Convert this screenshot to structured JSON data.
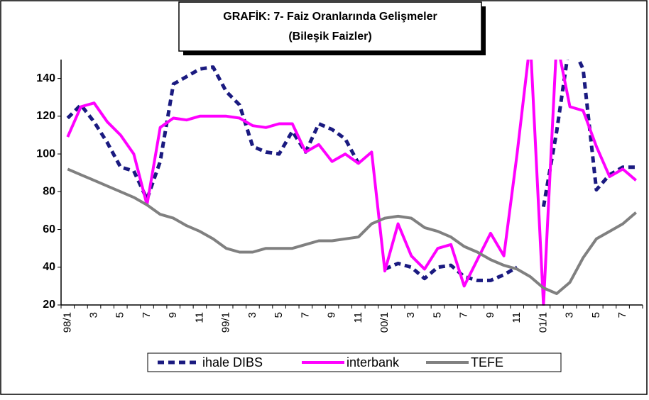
{
  "chart_data": {
    "type": "line",
    "title": "GRAFİK: 7- Faiz Oranlarında Gelişmeler",
    "subtitle": "(Bileşik Faizler)",
    "categories": [
      "98/1",
      null,
      "3",
      null,
      "5",
      null,
      "7",
      null,
      "9",
      null,
      "11",
      null,
      "99/1",
      null,
      "3",
      null,
      "5",
      null,
      "7",
      null,
      "9",
      null,
      "11",
      null,
      "00/1",
      null,
      "3",
      null,
      "5",
      null,
      "7",
      null,
      "9",
      null,
      "11",
      null,
      "01/1",
      null,
      "3",
      null,
      "5",
      null,
      "7",
      null
    ],
    "series": [
      {
        "name": "ihale DIBS",
        "color": "#1a1a80",
        "dashed": true,
        "values": [
          119,
          126,
          117,
          106,
          93,
          91,
          76,
          96,
          137,
          141,
          145,
          146,
          133,
          126,
          104,
          101,
          100,
          112,
          101,
          116,
          113,
          108,
          95,
          null,
          39,
          42,
          40,
          34,
          40,
          41,
          35,
          33,
          33,
          36,
          40,
          null,
          72,
          112,
          160,
          145,
          81,
          89,
          93,
          93
        ]
      },
      {
        "name": "interbank",
        "color": "#ff00ff",
        "dashed": false,
        "values": [
          109,
          125,
          127,
          117,
          110,
          100,
          73,
          114,
          119,
          118,
          120,
          120,
          120,
          119,
          115,
          114,
          116,
          116,
          101,
          105,
          96,
          100,
          95,
          101,
          38,
          63,
          46,
          39,
          50,
          52,
          30,
          44,
          58,
          46,
          100,
          160,
          20,
          160,
          125,
          123,
          104,
          88,
          92,
          86
        ]
      },
      {
        "name": "TEFE",
        "color": "#808080",
        "dashed": false,
        "values": [
          92,
          89,
          86,
          83,
          80,
          77,
          73,
          68,
          66,
          62,
          59,
          55,
          50,
          48,
          48,
          50,
          50,
          50,
          52,
          54,
          54,
          55,
          56,
          63,
          66,
          67,
          66,
          61,
          59,
          56,
          51,
          48,
          44,
          41,
          39,
          35,
          29,
          26,
          32,
          45,
          55,
          59,
          63,
          69
        ]
      }
    ],
    "ylim": [
      20,
      150
    ],
    "yticks": [
      20,
      40,
      60,
      80,
      100,
      120,
      140
    ],
    "legend": "bottom"
  }
}
